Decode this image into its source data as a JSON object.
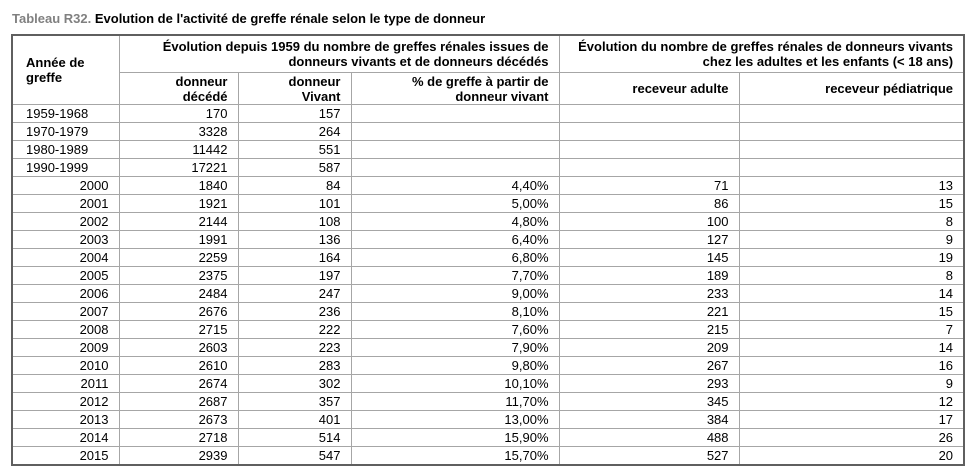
{
  "title": {
    "tag": "Tableau R32.",
    "text": " Evolution de l'activité de greffe rénale selon le type de donneur"
  },
  "colors": {
    "title_tag": "#808080",
    "border_outer": "#5f5f5f",
    "border_inner": "#a6a6a6",
    "text": "#000000"
  },
  "table": {
    "corner_header": "Année de\ngreffe",
    "group_headers": [
      {
        "label": "Évolution depuis 1959 du nombre de greffes rénales issues de\ndonneurs vivants et de donneurs décédés",
        "colspan": "3"
      },
      {
        "label": "Évolution du nombre de greffes rénales de donneurs vivants\nchez les adultes et les enfants (< 18 ans)",
        "colspan": "2"
      }
    ],
    "sub_headers": [
      "donneur\ndécédé",
      "donneur\nVivant",
      "% de greffe à partir de\ndonneur vivant",
      "receveur adulte",
      "receveur pédiatrique"
    ],
    "rows": [
      [
        "1959-1968",
        "170",
        "157",
        "",
        "",
        ""
      ],
      [
        "1970-1979",
        "3328",
        "264",
        "",
        "",
        ""
      ],
      [
        "1980-1989",
        "11442",
        "551",
        "",
        "",
        ""
      ],
      [
        "1990-1999",
        "17221",
        "587",
        "",
        "",
        ""
      ],
      [
        "2000",
        "1840",
        "84",
        "4,40%",
        "71",
        "13"
      ],
      [
        "2001",
        "1921",
        "101",
        "5,00%",
        "86",
        "15"
      ],
      [
        "2002",
        "2144",
        "108",
        "4,80%",
        "100",
        "8"
      ],
      [
        "2003",
        "1991",
        "136",
        "6,40%",
        "127",
        "9"
      ],
      [
        "2004",
        "2259",
        "164",
        "6,80%",
        "145",
        "19"
      ],
      [
        "2005",
        "2375",
        "197",
        "7,70%",
        "189",
        "8"
      ],
      [
        "2006",
        "2484",
        "247",
        "9,00%",
        "233",
        "14"
      ],
      [
        "2007",
        "2676",
        "236",
        "8,10%",
        "221",
        "15"
      ],
      [
        "2008",
        "2715",
        "222",
        "7,60%",
        "215",
        "7"
      ],
      [
        "2009",
        "2603",
        "223",
        "7,90%",
        "209",
        "14"
      ],
      [
        "2010",
        "2610",
        "283",
        "9,80%",
        "267",
        "16"
      ],
      [
        "2011",
        "2674",
        "302",
        "10,10%",
        "293",
        "9"
      ],
      [
        "2012",
        "2687",
        "357",
        "11,70%",
        "345",
        "12"
      ],
      [
        "2013",
        "2673",
        "401",
        "13,00%",
        "384",
        "17"
      ],
      [
        "2014",
        "2718",
        "514",
        "15,90%",
        "488",
        "26"
      ],
      [
        "2015",
        "2939",
        "547",
        "15,70%",
        "527",
        "20"
      ]
    ]
  },
  "chart_data": {
    "type": "table",
    "title": "Tableau R32. Evolution de l'activité de greffe rénale selon le type de donneur",
    "columns": [
      "Année de greffe",
      "donneur décédé",
      "donneur Vivant",
      "% de greffe à partir de donneur vivant",
      "receveur adulte",
      "receveur pédiatrique"
    ]
  }
}
